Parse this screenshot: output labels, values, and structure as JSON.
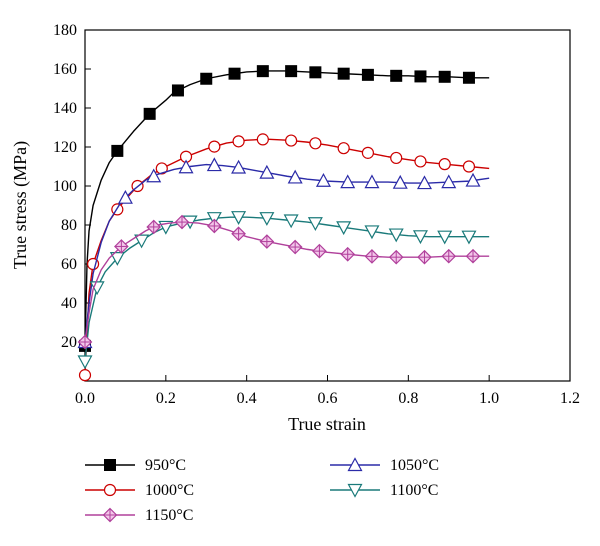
{
  "chart_data": {
    "type": "line",
    "title": "",
    "xlabel": "True strain",
    "ylabel": "True stress (MPa)",
    "xlim": [
      0.0,
      1.2
    ],
    "ylim": [
      0,
      180
    ],
    "x_ticks": [
      "0.0",
      "0.2",
      "0.4",
      "0.6",
      "0.8",
      "1.0",
      "1.2"
    ],
    "y_ticks": [
      "20",
      "40",
      "60",
      "80",
      "100",
      "120",
      "140",
      "160",
      "180"
    ],
    "grid": false,
    "legend_position": "below",
    "series": [
      {
        "name": "950°C",
        "color": "#000000",
        "marker": "square",
        "x": [
          0.0,
          0.005,
          0.01,
          0.02,
          0.04,
          0.06,
          0.08,
          0.1,
          0.12,
          0.16,
          0.2,
          0.22,
          0.26,
          0.3,
          0.35,
          0.4,
          0.45,
          0.5,
          0.55,
          0.6,
          0.65,
          0.7,
          0.75,
          0.8,
          0.85,
          0.9,
          0.95,
          1.0
        ],
        "y": [
          18,
          60,
          77,
          90,
          103,
          112,
          118,
          123,
          128,
          137,
          144,
          148,
          152,
          155,
          157,
          158.5,
          159,
          159,
          158.5,
          158,
          157.5,
          157,
          156.5,
          156.5,
          156,
          156,
          155.5,
          155.5
        ],
        "marker_x": [
          0.0,
          0.08,
          0.16,
          0.23,
          0.3,
          0.37,
          0.44,
          0.51,
          0.57,
          0.64,
          0.7,
          0.77,
          0.83,
          0.89,
          0.95
        ]
      },
      {
        "name": "1000°C",
        "color": "#cc0000",
        "marker": "circle",
        "x": [
          0.0,
          0.01,
          0.02,
          0.04,
          0.06,
          0.08,
          0.1,
          0.13,
          0.16,
          0.19,
          0.22,
          0.25,
          0.3,
          0.35,
          0.4,
          0.45,
          0.5,
          0.55,
          0.6,
          0.65,
          0.7,
          0.75,
          0.8,
          0.85,
          0.9,
          0.95,
          1.0
        ],
        "y": [
          3,
          45,
          60,
          72,
          82,
          88,
          93,
          100,
          105,
          109,
          112,
          115,
          119,
          122,
          123.5,
          124,
          123.5,
          122.5,
          121,
          119,
          117,
          115,
          113.5,
          112,
          111,
          110,
          109
        ],
        "marker_x": [
          0.0,
          0.02,
          0.08,
          0.13,
          0.19,
          0.25,
          0.32,
          0.38,
          0.44,
          0.51,
          0.57,
          0.64,
          0.7,
          0.77,
          0.83,
          0.89,
          0.95
        ]
      },
      {
        "name": "1050°C",
        "color": "#2b2ba8",
        "marker": "triangle-up",
        "x": [
          0.0,
          0.01,
          0.02,
          0.04,
          0.06,
          0.09,
          0.12,
          0.15,
          0.18,
          0.22,
          0.26,
          0.3,
          0.34,
          0.38,
          0.42,
          0.46,
          0.5,
          0.55,
          0.6,
          0.65,
          0.7,
          0.75,
          0.8,
          0.85,
          0.9,
          0.95,
          1.0
        ],
        "y": [
          20,
          40,
          55,
          71,
          82,
          92,
          98,
          103,
          106,
          108.5,
          110,
          111,
          110.5,
          109.5,
          108,
          106.5,
          105,
          103.5,
          102.5,
          102,
          102,
          102,
          101.5,
          101.5,
          102,
          102.5,
          104
        ],
        "marker_x": [
          0.0,
          0.1,
          0.17,
          0.25,
          0.32,
          0.38,
          0.45,
          0.52,
          0.59,
          0.65,
          0.71,
          0.78,
          0.84,
          0.9,
          0.96
        ]
      },
      {
        "name": "1100°C",
        "color": "#1a7a7a",
        "marker": "triangle-down",
        "x": [
          0.0,
          0.01,
          0.03,
          0.05,
          0.08,
          0.11,
          0.14,
          0.17,
          0.2,
          0.24,
          0.28,
          0.32,
          0.36,
          0.4,
          0.45,
          0.5,
          0.55,
          0.6,
          0.65,
          0.7,
          0.75,
          0.8,
          0.85,
          0.9,
          0.95,
          1.0
        ],
        "y": [
          10,
          30,
          48,
          56,
          63,
          68,
          72,
          76,
          79,
          81,
          82.5,
          83.5,
          84,
          84,
          83.5,
          82.5,
          81.5,
          80,
          78.5,
          77,
          75.5,
          74.5,
          74,
          74,
          74,
          74
        ],
        "marker_x": [
          0.0,
          0.03,
          0.08,
          0.14,
          0.2,
          0.26,
          0.32,
          0.38,
          0.45,
          0.51,
          0.57,
          0.64,
          0.71,
          0.77,
          0.83,
          0.89,
          0.95
        ]
      },
      {
        "name": "1150°C",
        "color": "#b0409b",
        "marker": "diamond",
        "x": [
          0.0,
          0.01,
          0.02,
          0.04,
          0.06,
          0.09,
          0.12,
          0.15,
          0.18,
          0.21,
          0.24,
          0.28,
          0.32,
          0.36,
          0.4,
          0.45,
          0.5,
          0.55,
          0.6,
          0.65,
          0.7,
          0.75,
          0.8,
          0.85,
          0.9,
          0.95,
          1.0
        ],
        "y": [
          20,
          35,
          47,
          57,
          63,
          69,
          73,
          77,
          80,
          81,
          81.5,
          81,
          79.5,
          77,
          74,
          71.5,
          69.5,
          67.5,
          66,
          65,
          64,
          63.5,
          63.5,
          63.5,
          64,
          64,
          64
        ],
        "marker_x": [
          0.0,
          0.09,
          0.17,
          0.24,
          0.32,
          0.38,
          0.45,
          0.52,
          0.58,
          0.65,
          0.71,
          0.77,
          0.84,
          0.9,
          0.96
        ]
      }
    ],
    "legend_order": [
      0,
      1,
      4,
      2,
      3
    ]
  }
}
